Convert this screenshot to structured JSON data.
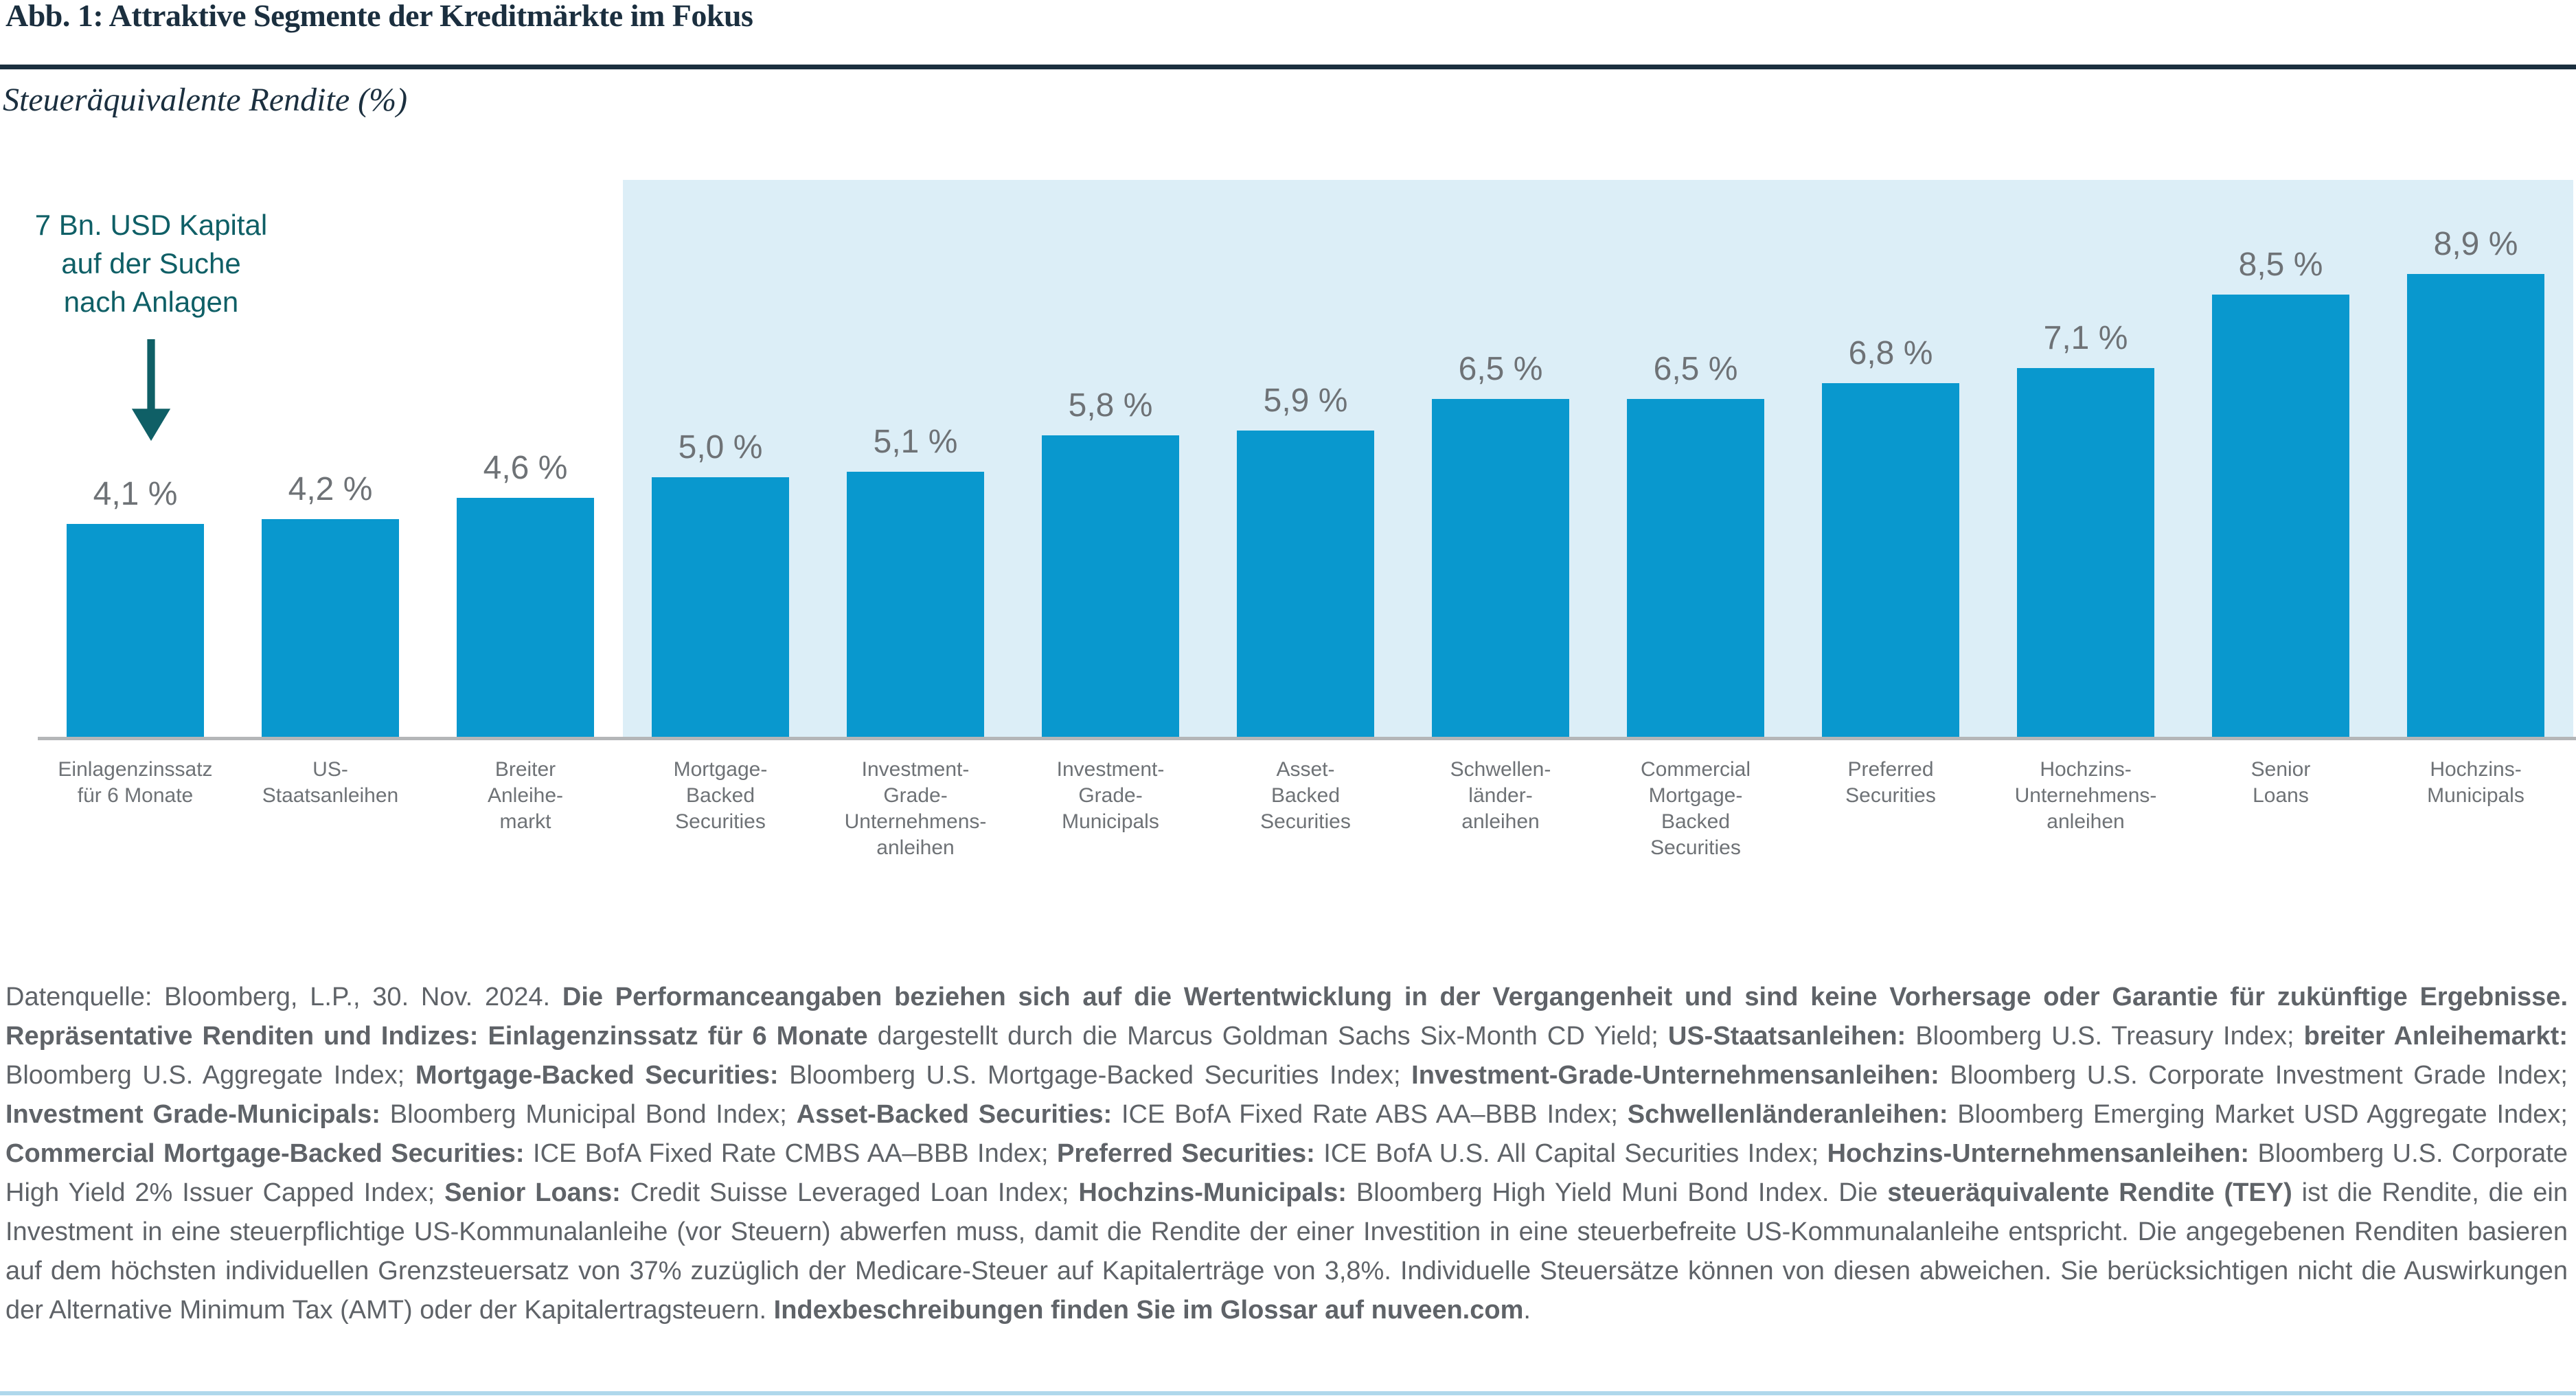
{
  "header": {
    "title": "Abb. 1: Attraktive Segmente der Kreditmärkte im Fokus",
    "subtitle": "Steueräquivalente Rendite (%)"
  },
  "annotation": {
    "text": "7 Bn. USD Kapital\nauf der Suche\nnach Anlagen",
    "icon": "down-arrow"
  },
  "chart_data": {
    "type": "bar",
    "title": "Abb. 1: Attraktive Segmente der Kreditmärkte im Fokus",
    "subtitle": "Steueräquivalente Rendite (%)",
    "unit": "%",
    "ylim": [
      0,
      10.7
    ],
    "grid": false,
    "legend": null,
    "annotations": [
      "7 Bn. USD Kapital auf der Suche nach Anlagen"
    ],
    "highlight_region": {
      "from_category_index": 3,
      "to_category_index": 12,
      "color": "#dceef7"
    },
    "categories": [
      "Einlagenzinssatz\nfür 6 Monate",
      "US-\nStaatsanleihen",
      "Breiter\nAnleihe-\nmarkt",
      "Mortgage-\nBacked\nSecurities",
      "Investment-\nGrade-\nUnternehmens-\nanleihen",
      "Investment-\nGrade-\nMunicipals",
      "Asset-\nBacked\nSecurities",
      "Schwellen-\nländer-\nanleihen",
      "Commercial\nMortgage-\nBacked\nSecurities",
      "Preferred\nSecurities",
      "Hochzins-\nUnternehmens-\nanleihen",
      "Senior\nLoans",
      "Hochzins-\nMunicipals"
    ],
    "values": [
      4.1,
      4.2,
      4.6,
      5.0,
      5.1,
      5.8,
      5.9,
      6.5,
      6.5,
      6.8,
      7.1,
      8.5,
      8.9
    ],
    "value_labels": [
      "4,1 %",
      "4,2 %",
      "4,6 %",
      "5,0 %",
      "5,1 %",
      "5,8 %",
      "5,9 %",
      "6,5 %",
      "6,5 %",
      "6,8 %",
      "7,1 %",
      "8,5 %",
      "8,9 %"
    ]
  },
  "colors": {
    "bar": "#0998ce",
    "highlight_panel": "#dceef7",
    "title": "#1b2f3f",
    "annotation_teal": "#0f5f66",
    "label_gray": "#6e7276",
    "axis_line": "#b4b6b8",
    "footnote_gray": "#5f6368",
    "bottom_rule": "#afd8ec"
  },
  "footnote": {
    "segments": [
      {
        "t": "Datenquelle: Bloomberg, L.P., 30. Nov. 2024. ",
        "b": false
      },
      {
        "t": "Die Performanceangaben beziehen sich auf die Wertentwicklung in der Vergangenheit und sind keine Vorhersage oder Garantie für zukünftige Ergebnisse. Repräsentative Renditen und Indizes: Einlagenzinssatz für 6 Monate ",
        "b": true
      },
      {
        "t": "dargestellt durch die Marcus Goldman Sachs Six-Month CD Yield; ",
        "b": false
      },
      {
        "t": "US-Staatsanleihen:",
        "b": true
      },
      {
        "t": " Bloomberg U.S. Treasury Index; ",
        "b": false
      },
      {
        "t": "breiter Anleihemarkt:",
        "b": true
      },
      {
        "t": " Bloomberg U.S. Aggregate Index; ",
        "b": false
      },
      {
        "t": "Mortgage-Backed Securities:",
        "b": true
      },
      {
        "t": " Bloomberg U.S. Mortgage-Backed Securities Index; ",
        "b": false
      },
      {
        "t": "Investment-Grade-Unternehmensanleihen:",
        "b": true
      },
      {
        "t": " Bloomberg U.S. Corporate Investment Grade Index; ",
        "b": false
      },
      {
        "t": "Investment Grade-Municipals:",
        "b": true
      },
      {
        "t": " Bloomberg Municipal Bond Index; ",
        "b": false
      },
      {
        "t": "Asset-Backed Securities:",
        "b": true
      },
      {
        "t": " ICE BofA Fixed Rate ABS AA–BBB Index; ",
        "b": false
      },
      {
        "t": "Schwellenländeranleihen:",
        "b": true
      },
      {
        "t": " Bloomberg Emerging Market USD Aggregate Index; ",
        "b": false
      },
      {
        "t": "Commercial Mortgage-Backed Securities:",
        "b": true
      },
      {
        "t": " ICE BofA Fixed Rate CMBS AA–BBB Index; ",
        "b": false
      },
      {
        "t": "Preferred Securities:",
        "b": true
      },
      {
        "t": " ICE BofA U.S. All Capital Securities Index; ",
        "b": false
      },
      {
        "t": "Hochzins-Unternehmensanleihen:",
        "b": true
      },
      {
        "t": " Bloomberg U.S. Corporate High Yield 2% Issuer Capped Index; ",
        "b": false
      },
      {
        "t": "Senior Loans:",
        "b": true
      },
      {
        "t": " Credit Suisse Leveraged Loan Index; ",
        "b": false
      },
      {
        "t": "Hochzins-Municipals:",
        "b": true
      },
      {
        "t": " Bloomberg High Yield Muni Bond Index. Die ",
        "b": false
      },
      {
        "t": "steueräquivalente Rendite (TEY)",
        "b": true
      },
      {
        "t": " ist die Rendite, die ein Investment in eine steuerpflichtige US-Kommunalanleihe (vor Steuern) abwerfen muss, damit die Rendite der einer Investition in eine steuerbefreite US-Kommunalanleihe entspricht. Die angegebenen Renditen basieren auf dem höchsten individuellen Grenzsteuersatz von 37% zuzüglich der Medicare-Steuer auf Kapitalerträge von 3,8%. Individuelle Steuersätze können von diesen abweichen. Sie berücksichtigen nicht die Auswirkungen der Alternative Minimum Tax (AMT) oder der Kapitalertragsteuern. ",
        "b": false
      },
      {
        "t": "Indexbeschreibungen finden Sie im Glossar auf nuveen.com",
        "b": true
      },
      {
        "t": ".",
        "b": false
      }
    ]
  }
}
